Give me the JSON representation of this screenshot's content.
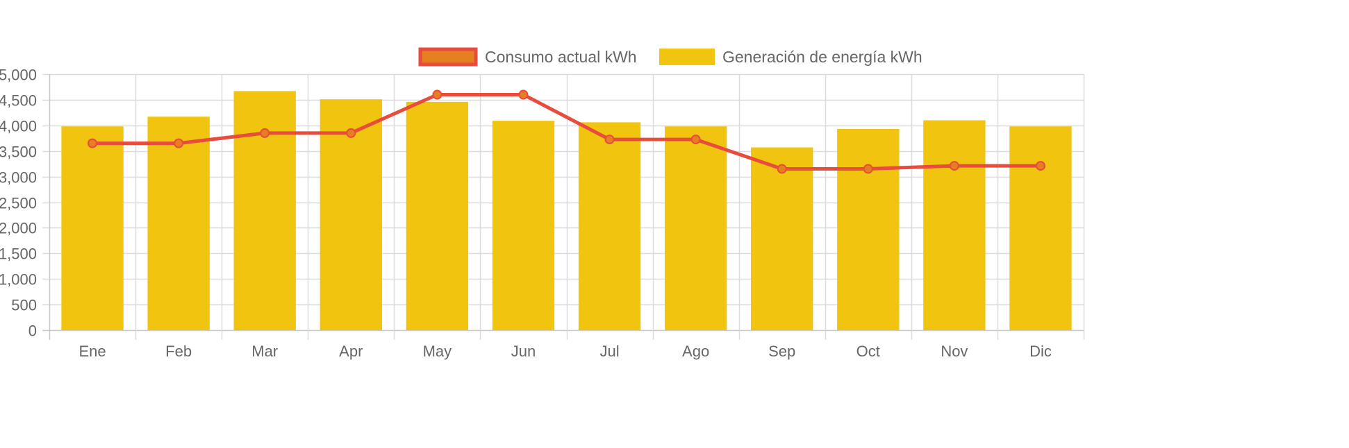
{
  "chart_data": {
    "type": "bar",
    "categories": [
      "Ene",
      "Feb",
      "Mar",
      "Apr",
      "May",
      "Jun",
      "Jul",
      "Ago",
      "Sep",
      "Oct",
      "Nov",
      "Dic"
    ],
    "series": [
      {
        "name": "Consumo actual kWh",
        "type": "line",
        "values": [
          3650,
          3650,
          3850,
          3850,
          4600,
          4600,
          3725,
          3725,
          3150,
          3150,
          3210,
          3210
        ],
        "color": "#e74c3c",
        "point_color": "#e67e22"
      },
      {
        "name": "Generación de energía kWh",
        "type": "bar",
        "values": [
          3980,
          4170,
          4670,
          4510,
          4460,
          4090,
          4060,
          3980,
          3570,
          3930,
          4100,
          3980
        ],
        "color": "#f1c40f"
      }
    ],
    "ylim": [
      0,
      5000
    ],
    "y_ticks": [
      "0",
      "500",
      "1,000",
      "1,500",
      "2,000",
      "2,500",
      "3,000",
      "3,500",
      "4,000",
      "4,500",
      "5,000"
    ],
    "grid": true,
    "legend_position": "top-center"
  }
}
